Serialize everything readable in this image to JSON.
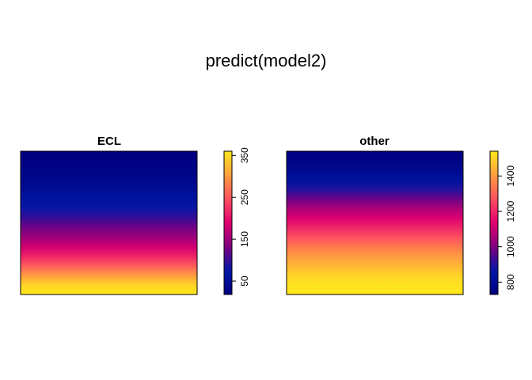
{
  "figure": {
    "title": "predict(model2)"
  },
  "palette": [
    "#00007F",
    "#0018A8",
    "#800080",
    "#E0006F",
    "#FF5060",
    "#FF9E40",
    "#FFE81C"
  ],
  "chart_data": [
    {
      "type": "heatmap",
      "title": "ECL",
      "zlim": [
        18,
        360
      ],
      "rows_top_to_bottom": [
        18,
        22,
        28,
        36,
        48,
        62,
        80,
        100,
        125,
        150,
        180,
        215,
        255,
        300,
        345,
        360
      ],
      "colorbar_ticks": [
        50,
        150,
        250,
        350
      ],
      "xaxis": "none",
      "yaxis": "none"
    },
    {
      "type": "heatmap",
      "title": "other",
      "zlim": [
        730,
        1540
      ],
      "rows_top_to_bottom": [
        735,
        750,
        780,
        830,
        900,
        980,
        1060,
        1130,
        1200,
        1270,
        1340,
        1400,
        1450,
        1500,
        1530,
        1540
      ],
      "colorbar_ticks": [
        800,
        1000,
        1200,
        1400
      ],
      "xaxis": "none",
      "yaxis": "none"
    }
  ]
}
